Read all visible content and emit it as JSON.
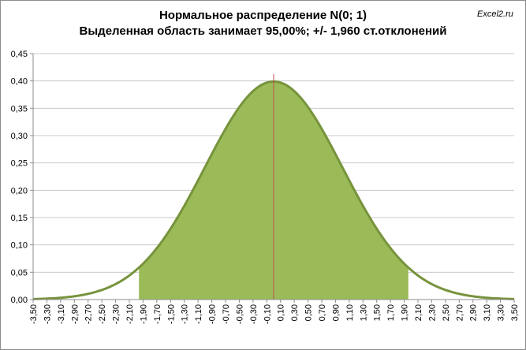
{
  "chart_data": {
    "type": "area",
    "title": "Нормальное распределение N(0; 1)",
    "subtitle": "Выделенная область занимает 95,00%;  +/- 1,960 ст.отклонений",
    "watermark": "Excel2.ru",
    "xlabel": "",
    "ylabel": "",
    "xlim": [
      -3.5,
      3.5
    ],
    "ylim": [
      0,
      0.45
    ],
    "y_ticks": [
      "0,00",
      "0,05",
      "0,10",
      "0,15",
      "0,20",
      "0,25",
      "0,30",
      "0,35",
      "0,40",
      "0,45"
    ],
    "x_ticks": [
      "-3,50",
      "-3,30",
      "-3,10",
      "-2,90",
      "-2,70",
      "-2,50",
      "-2,30",
      "-2,10",
      "-1,90",
      "-1,70",
      "-1,50",
      "-1,30",
      "-1,10",
      "-0,90",
      "-0,70",
      "-0,50",
      "-0,30",
      "-0,10",
      "0,10",
      "0,30",
      "0,50",
      "0,70",
      "0,90",
      "1,10",
      "1,30",
      "1,50",
      "1,70",
      "1,90",
      "2,10",
      "2,30",
      "2,50",
      "2,70",
      "2,90",
      "3,10",
      "3,30",
      "3,50"
    ],
    "mean": 0,
    "std": 1,
    "shaded_range": [
      -1.96,
      1.96
    ],
    "shaded_percent": "95,00%",
    "sigma_multiple": "1,960",
    "curve_points": [
      [
        -3.5,
        0.0009
      ],
      [
        -3.0,
        0.0044
      ],
      [
        -2.5,
        0.0175
      ],
      [
        -2.0,
        0.054
      ],
      [
        -1.5,
        0.1295
      ],
      [
        -1.0,
        0.242
      ],
      [
        -0.5,
        0.3521
      ],
      [
        0.0,
        0.3989
      ],
      [
        0.5,
        0.3521
      ],
      [
        1.0,
        0.242
      ],
      [
        1.5,
        0.1295
      ],
      [
        2.0,
        0.054
      ],
      [
        2.5,
        0.0175
      ],
      [
        3.0,
        0.0044
      ],
      [
        3.5,
        0.0009
      ]
    ],
    "grid": "horizontal",
    "legend": "none",
    "colors": {
      "curve": "#77933c",
      "fill": "#9bbb59",
      "mean_line": "#c0504d",
      "gridline": "#c8c8c8",
      "axis": "#8c8c8c"
    }
  }
}
